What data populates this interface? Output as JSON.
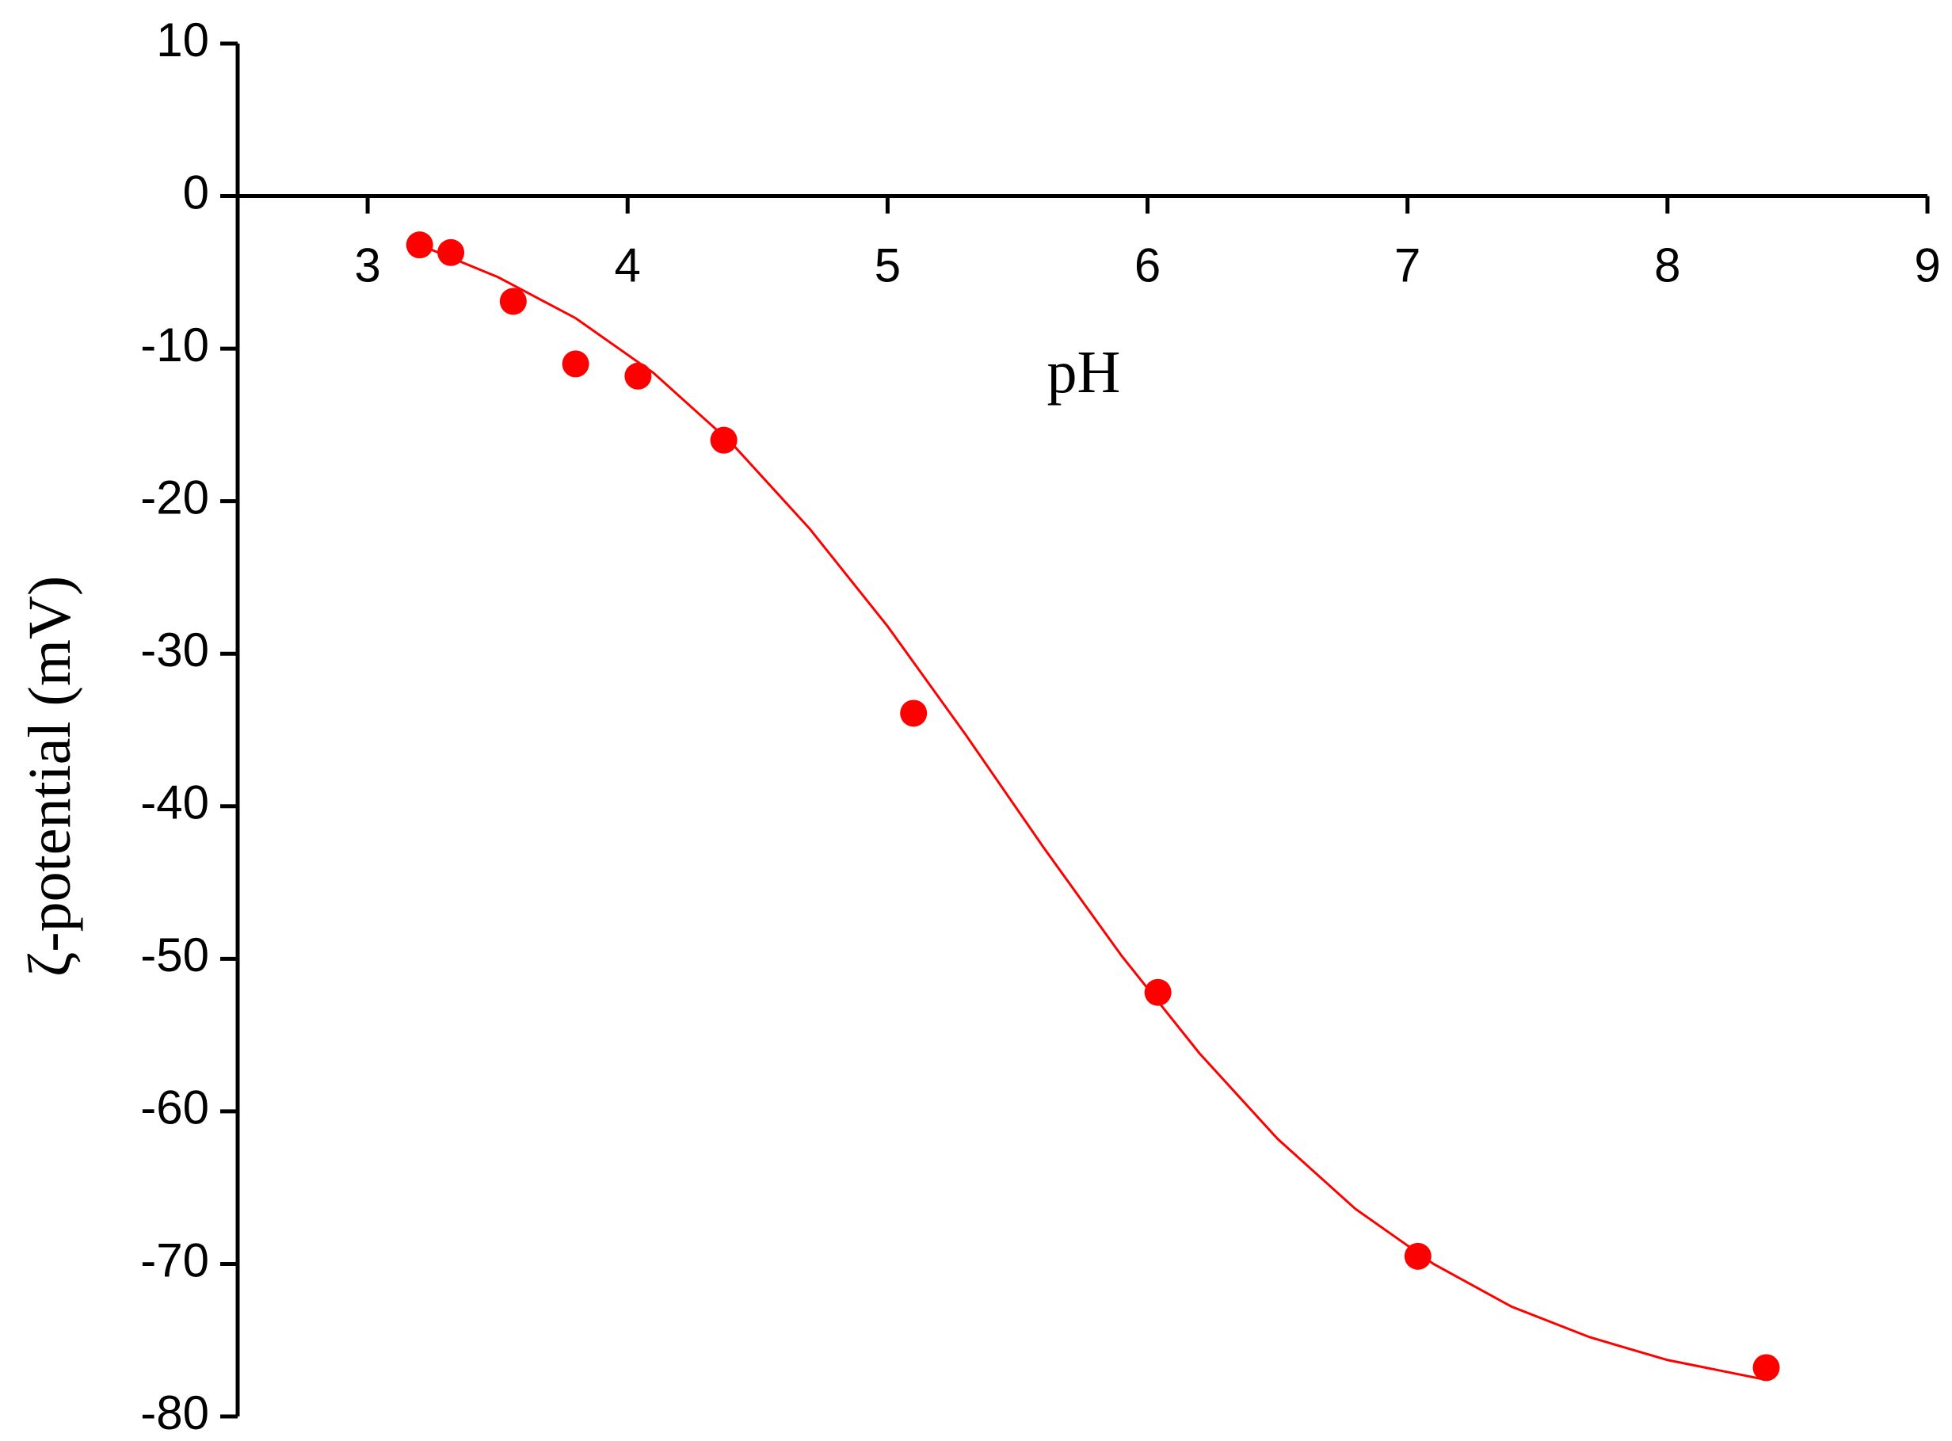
{
  "chart_data": {
    "type": "scatter",
    "x_label": "pH",
    "y_label": "ζ-potential (mV)",
    "xlim": [
      2.5,
      9
    ],
    "ylim": [
      -80,
      10
    ],
    "xticks": [
      3,
      4,
      5,
      6,
      7,
      8,
      9
    ],
    "yticks": [
      10,
      0,
      -10,
      -20,
      -30,
      -40,
      -50,
      -60,
      -70,
      -80
    ],
    "series": [
      {
        "kind": "points",
        "color": "#ff0000",
        "x": [
          3.2,
          3.32,
          3.56,
          3.8,
          4.04,
          4.37,
          5.1,
          6.04,
          7.04,
          8.38
        ],
        "values": [
          -3.2,
          -3.7,
          -6.9,
          -11,
          -11.8,
          -16,
          -33.9,
          -52.2,
          -69.5,
          -76.8
        ]
      },
      {
        "kind": "line",
        "color": "#ff0000",
        "x": [
          3.2,
          3.5,
          3.8,
          4.1,
          4.4,
          4.7,
          5.0,
          5.3,
          5.6,
          5.9,
          6.2,
          6.5,
          6.8,
          7.1,
          7.4,
          7.7,
          8.0,
          8.38
        ],
        "values": [
          -3.2,
          -5.3,
          -8.0,
          -11.6,
          -16.2,
          -21.8,
          -28.2,
          -35.3,
          -42.7,
          -49.8,
          -56.2,
          -61.8,
          -66.4,
          -70.0,
          -72.8,
          -74.8,
          -76.3,
          -77.6
        ]
      }
    ]
  }
}
